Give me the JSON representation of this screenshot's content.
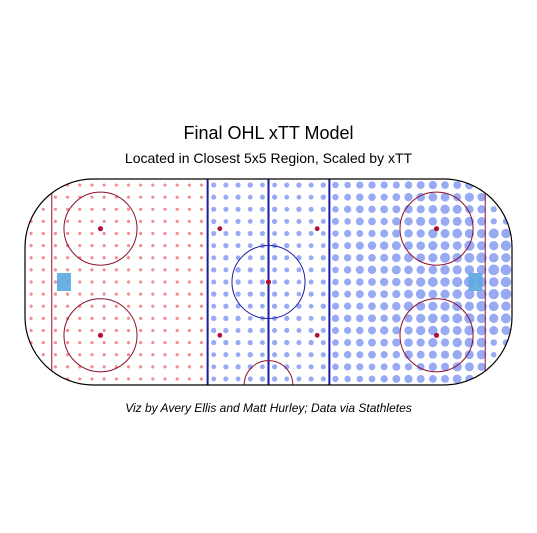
{
  "chart_data": {
    "type": "scatter",
    "title": "Final OHL xTT Model",
    "subtitle": "Located in Closest 5x5 Region, Scaled by xTT",
    "caption": "Viz by Avery Ellis and Matt Hurley; Data via Stathletes",
    "x_range": [
      -100,
      100
    ],
    "y_range": [
      -42.5,
      42.5
    ],
    "grid_spacing": 5,
    "legend": "none",
    "scale_note": "marker area scales with xTT",
    "colors": {
      "low": "#f07a7e",
      "high": "#6c86f0",
      "crease": "#5aa9e0",
      "rink_line": "#000000",
      "blue_line": "#1a1aa8",
      "red_line": "#8b1030",
      "faceoff": "#b0103c"
    },
    "xtt_model": {
      "defensive_zone_level": 0.06,
      "neutral_zone_level": 0.24,
      "offensive_zone_base": 0.4,
      "peak_location": [
        90,
        0
      ],
      "peak_value": 1.0
    },
    "highlights": [
      {
        "x": -84,
        "y": 0,
        "label": "defensive crease",
        "color": "crease"
      },
      {
        "x": 85,
        "y": 0,
        "label": "offensive crease",
        "color": "crease"
      }
    ]
  }
}
